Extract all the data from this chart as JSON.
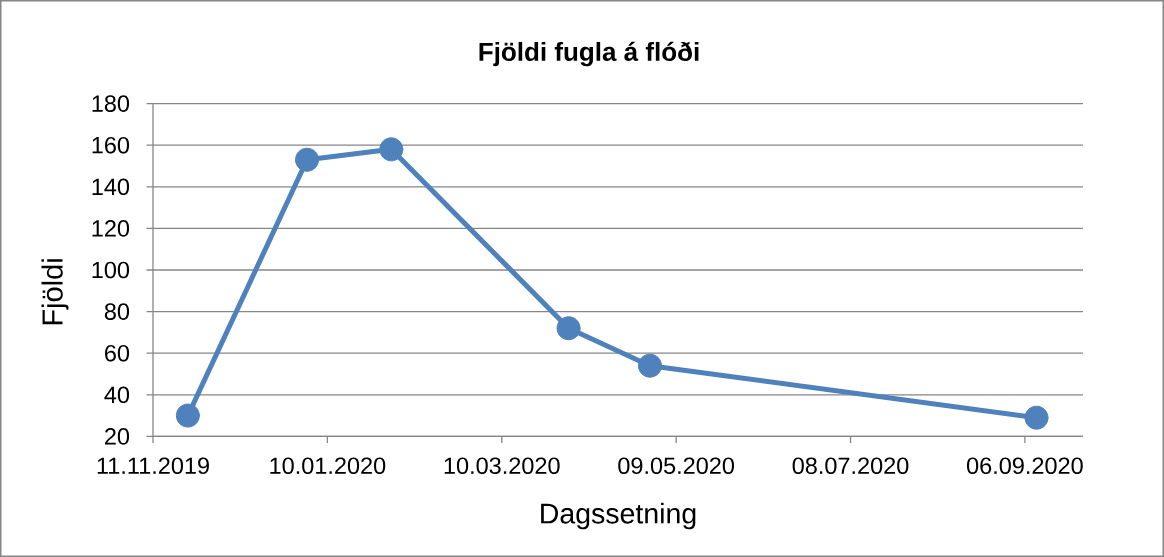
{
  "chart_data": {
    "type": "line",
    "title": "Fjöldi fugla á flóði",
    "xlabel": "Dagssetning",
    "ylabel": "Fjöldi",
    "x": [
      "2019-11-23",
      "2020-01-03",
      "2020-02-01",
      "2020-04-02",
      "2020-04-30",
      "2020-09-10"
    ],
    "series": [
      {
        "color": "#4f81bd",
        "values": [
          30,
          153,
          158,
          72,
          54,
          29
        ]
      }
    ],
    "xlim": [
      "2019-11-11",
      "2020-09-26"
    ],
    "xticks": [
      {
        "value": "2019-11-11",
        "label": "11.11.2019"
      },
      {
        "value": "2020-01-10",
        "label": "10.01.2020"
      },
      {
        "value": "2020-03-10",
        "label": "10.03.2020"
      },
      {
        "value": "2020-05-09",
        "label": "09.05.2020"
      },
      {
        "value": "2020-07-08",
        "label": "08.07.2020"
      },
      {
        "value": "2020-09-06",
        "label": "06.09.2020"
      }
    ],
    "ylim": [
      20,
      180
    ],
    "yticks": [
      20,
      40,
      60,
      80,
      100,
      120,
      140,
      160,
      180
    ],
    "grid": "y",
    "marker": "circle",
    "line_style": "solid"
  }
}
